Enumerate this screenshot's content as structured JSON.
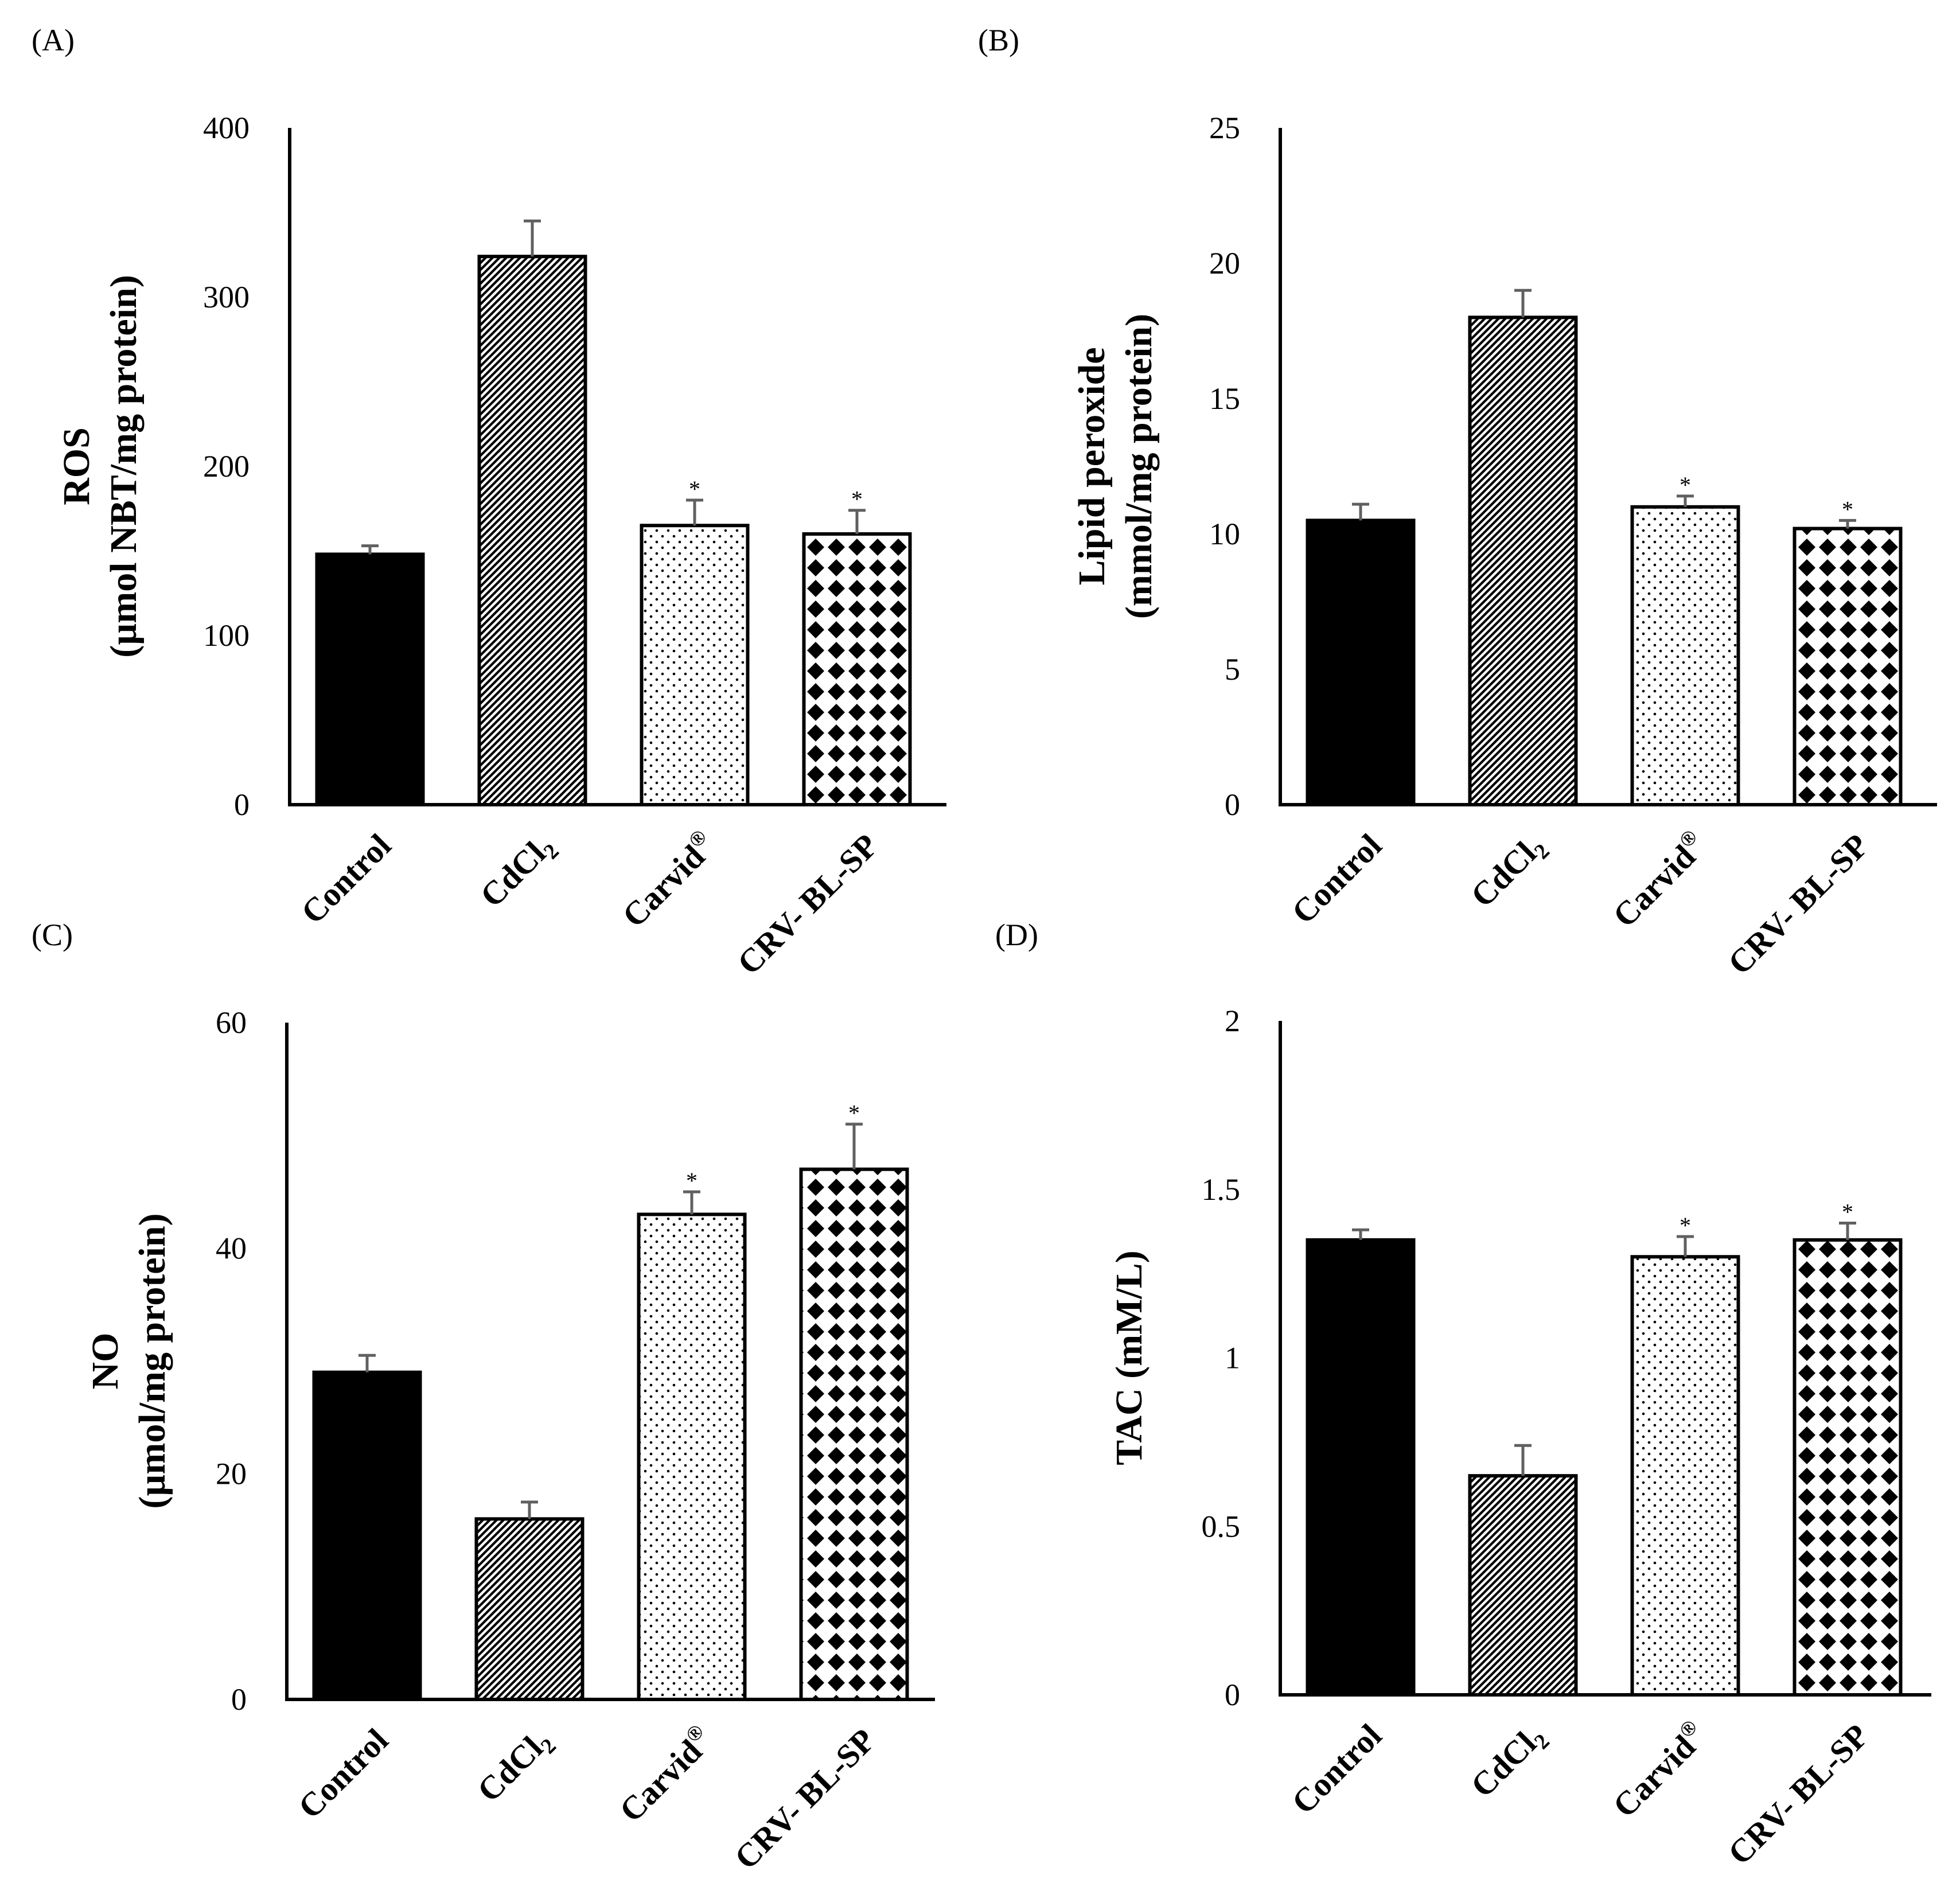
{
  "colors": {
    "ink": "#000000",
    "paper": "#ffffff",
    "error_bar": "#606060"
  },
  "chart_data": [
    {
      "type": "bar",
      "panel_label": "(A)",
      "categories": [
        "Control",
        "CdCl",
        "Carvid",
        "CRV- BL-SP"
      ],
      "category_sub": [
        "",
        "2",
        "",
        ""
      ],
      "category_sup": [
        "",
        "",
        "®",
        ""
      ],
      "values": [
        148,
        324,
        165,
        160
      ],
      "errors": [
        5,
        21,
        15,
        14
      ],
      "significant": [
        false,
        false,
        true,
        true
      ],
      "sig_marker": "*",
      "fills": [
        "solid",
        "diagonal",
        "dots",
        "diamonds"
      ],
      "ylabel_lines": [
        "ROS",
        "(µmol NBT/mg protein)"
      ],
      "ylim": [
        0,
        400
      ],
      "yticks": [
        0,
        100,
        200,
        300,
        400
      ],
      "ytick_labels": [
        "0",
        "100",
        "200",
        "300",
        "400"
      ]
    },
    {
      "type": "bar",
      "panel_label": "(B)",
      "categories": [
        "Control",
        "CdCl",
        "Carvid",
        "CRV- BL-SP"
      ],
      "category_sub": [
        "",
        "2",
        "",
        ""
      ],
      "category_sup": [
        "",
        "",
        "®",
        ""
      ],
      "values": [
        10.5,
        18,
        11,
        10.2
      ],
      "errors": [
        0.6,
        1,
        0.4,
        0.3
      ],
      "significant": [
        false,
        false,
        true,
        true
      ],
      "sig_marker": "*",
      "fills": [
        "solid",
        "diagonal",
        "dots",
        "diamonds"
      ],
      "ylabel_lines": [
        "Lipid peroxide",
        "(mmol/mg protein)"
      ],
      "ylim": [
        0,
        25
      ],
      "yticks": [
        0,
        5,
        10,
        15,
        20,
        25
      ],
      "ytick_labels": [
        "0",
        "5",
        "10",
        "15",
        "20",
        "25"
      ]
    },
    {
      "type": "bar",
      "panel_label": "(C)",
      "categories": [
        "Control",
        "CdCl",
        "Carvid",
        "CRV- BL-SP"
      ],
      "category_sub": [
        "",
        "2",
        "",
        ""
      ],
      "category_sup": [
        "",
        "",
        "®",
        ""
      ],
      "values": [
        29,
        16,
        43,
        47
      ],
      "errors": [
        1.5,
        1.5,
        2,
        4
      ],
      "significant": [
        false,
        false,
        true,
        true
      ],
      "sig_marker": "*",
      "fills": [
        "solid",
        "diagonal",
        "dots",
        "diamonds"
      ],
      "ylabel_lines": [
        "NO",
        "(µmol/mg protein)"
      ],
      "ylim": [
        0,
        60
      ],
      "yticks": [
        0,
        20,
        40,
        60
      ],
      "ytick_labels": [
        "0",
        "20",
        "40",
        "60"
      ]
    },
    {
      "type": "bar",
      "panel_label": "(D)",
      "categories": [
        "Control",
        "CdCl",
        "Carvid",
        "CRV- BL-SP"
      ],
      "category_sub": [
        "",
        "2",
        "",
        ""
      ],
      "category_sup": [
        "",
        "",
        "®",
        ""
      ],
      "values": [
        1.35,
        0.65,
        1.3,
        1.35
      ],
      "errors": [
        0.03,
        0.09,
        0.06,
        0.05
      ],
      "significant": [
        false,
        false,
        true,
        true
      ],
      "sig_marker": "*",
      "fills": [
        "solid",
        "diagonal",
        "dots",
        "diamonds"
      ],
      "ylabel_lines": [
        "TAC (mM/L)"
      ],
      "ylim": [
        0,
        2
      ],
      "yticks": [
        0,
        0.5,
        1,
        1.5,
        2
      ],
      "ytick_labels": [
        "0",
        "0.5",
        "1",
        "1.5",
        "2"
      ]
    }
  ]
}
